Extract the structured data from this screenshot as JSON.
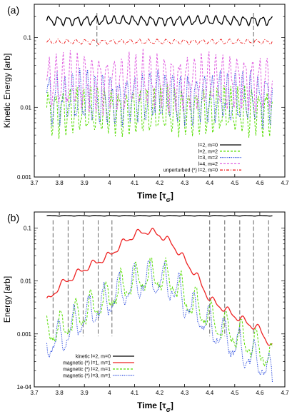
{
  "chart_data": [
    {
      "type": "line",
      "panel_label": "(a)",
      "xlabel": "Time",
      "xlabel_subscript": "σ",
      "ylabel": "Kinetic Energy [arb]",
      "yscale": "log",
      "xlim": [
        3.7,
        4.7
      ],
      "ylim": [
        0.001,
        0.3
      ],
      "x_ticks": [
        "3.7",
        "3.8",
        "3.9",
        "4",
        "4.1",
        "4.2",
        "4.3",
        "4.4",
        "4.5",
        "4.6",
        "4.7"
      ],
      "y_ticks": [
        "0.001",
        "0.01",
        "0.1"
      ],
      "grid": false,
      "legend_position": "bottom-right",
      "vlines": [
        3.95,
        4.575
      ],
      "series": [
        {
          "name": "l=2, m=0",
          "color": "#000000",
          "style": "solid",
          "x": [
            3.75,
            4.65
          ],
          "base": 0.175,
          "amp": 0.055,
          "period": 0.037,
          "noise": 0.0
        },
        {
          "name": "l=2, m=2",
          "color": "#55dd00",
          "style": "dashed",
          "x": [
            3.75,
            4.65
          ],
          "base": 0.0088,
          "amp": 0.28,
          "period": 0.028,
          "noise": 0.15
        },
        {
          "name": "l=3, m=2",
          "color": "#2244dd",
          "style": "dotted",
          "x": [
            3.75,
            4.65
          ],
          "base": 0.0135,
          "amp": 0.3,
          "period": 0.031,
          "noise": 0.2
        },
        {
          "name": "l=4, m=2",
          "color": "#e060e0",
          "style": "dashed",
          "x": [
            3.75,
            4.65
          ],
          "base": 0.023,
          "amp": 0.33,
          "period": 0.029,
          "noise": 0.15
        },
        {
          "name": "unperturbed (*) l=2, m=0",
          "color": "#ee2222",
          "style": "dashdot",
          "x": [
            3.75,
            4.65
          ],
          "base": 0.087,
          "amp": 0.03,
          "period": 0.036,
          "noise": 0.0
        }
      ]
    },
    {
      "type": "line",
      "panel_label": "(b)",
      "xlabel": "Time",
      "xlabel_subscript": "σ",
      "ylabel": "Energy [arb]",
      "yscale": "log",
      "xlim": [
        3.7,
        4.7
      ],
      "ylim": [
        0.0001,
        0.2
      ],
      "x_ticks": [
        "3.7",
        "3.8",
        "3.9",
        "4",
        "4.1",
        "4.2",
        "4.3",
        "4.4",
        "4.5",
        "4.6",
        "4.7"
      ],
      "y_ticks": [
        "1e-04",
        "0.001",
        "0.01",
        "0.1"
      ],
      "grid": false,
      "legend_position": "bottom-left",
      "vlines": [
        3.775,
        3.835,
        3.895,
        3.955,
        4.01,
        4.4,
        4.46,
        4.52,
        4.575,
        4.635
      ],
      "series": [
        {
          "name": "kinetic l=2, m=0",
          "color": "#000000",
          "style": "solid",
          "x": [
            3.75,
            4.65
          ],
          "points": [
            [
              3.75,
              0.17
            ],
            [
              4.65,
              0.17
            ]
          ],
          "wiggle": 0.05
        },
        {
          "name": "magnetic (*) l=1, m=1",
          "color": "#ee2222",
          "style": "solid",
          "points": [
            [
              3.75,
              0.004
            ],
            [
              3.8,
              0.008
            ],
            [
              3.9,
              0.017
            ],
            [
              4.0,
              0.03
            ],
            [
              4.05,
              0.05
            ],
            [
              4.1,
              0.075
            ],
            [
              4.15,
              0.088
            ],
            [
              4.2,
              0.075
            ],
            [
              4.25,
              0.05
            ],
            [
              4.3,
              0.025
            ],
            [
              4.35,
              0.012
            ],
            [
              4.4,
              0.0045
            ],
            [
              4.5,
              0.0022
            ],
            [
              4.6,
              0.0012
            ],
            [
              4.65,
              0.00055
            ]
          ],
          "wiggle": 0.12
        },
        {
          "name": "magnetic (*) l=2, m=1",
          "color": "#55dd00",
          "style": "dashed",
          "points": [
            [
              3.75,
              0.0012
            ],
            [
              3.8,
              0.0012
            ],
            [
              3.9,
              0.0025
            ],
            [
              4.0,
              0.005
            ],
            [
              4.1,
              0.01
            ],
            [
              4.15,
              0.012
            ],
            [
              4.2,
              0.012
            ],
            [
              4.25,
              0.01
            ],
            [
              4.3,
              0.005
            ],
            [
              4.4,
              0.002
            ],
            [
              4.5,
              0.001
            ],
            [
              4.6,
              0.0005
            ],
            [
              4.65,
              0.0003
            ]
          ],
          "wiggle": 0.5
        },
        {
          "name": "magnetic (*) l=3, m=1",
          "color": "#2244dd",
          "style": "dotted",
          "points": [
            [
              3.75,
              0.0007
            ],
            [
              3.8,
              0.0008
            ],
            [
              3.9,
              0.002
            ],
            [
              4.0,
              0.0045
            ],
            [
              4.1,
              0.009
            ],
            [
              4.15,
              0.011
            ],
            [
              4.2,
              0.01
            ],
            [
              4.25,
              0.008
            ],
            [
              4.3,
              0.004
            ],
            [
              4.4,
              0.0015
            ],
            [
              4.5,
              0.0006
            ],
            [
              4.6,
              0.0003
            ],
            [
              4.65,
              0.00015
            ]
          ],
          "wiggle": 0.55
        }
      ]
    }
  ]
}
